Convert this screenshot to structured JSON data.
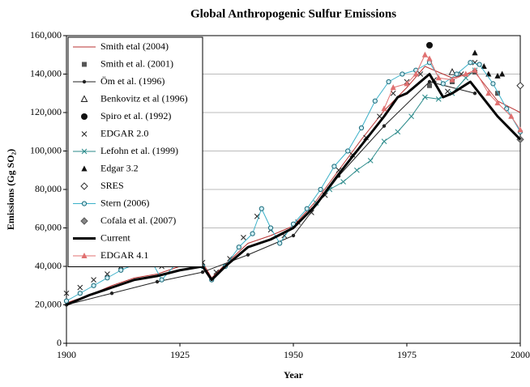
{
  "chart_data": {
    "type": "line",
    "title": "Global Anthropogenic Sulfur Emissions",
    "x_label": "Year",
    "y_label": "Emissions (Gg SO₂)",
    "xlim": [
      1900,
      2000
    ],
    "xticks": [
      1900,
      1925,
      1950,
      1975,
      2000
    ],
    "ylim": [
      0,
      160000
    ],
    "yticks": [
      0,
      {
        "value": 20000,
        "label": "20,000"
      },
      {
        "value": 40000,
        "label": "40,000"
      },
      {
        "value": 60000,
        "label": "60,000"
      },
      {
        "value": 80000,
        "label": "80,000"
      },
      {
        "value": 100000,
        "label": "100,000"
      },
      {
        "value": 120000,
        "label": "120,000"
      },
      {
        "value": 140000,
        "label": "140,000"
      },
      {
        "value": 160000,
        "label": "160,000"
      }
    ],
    "grid": true,
    "legend": "top-left",
    "series": [
      {
        "name": "Smith etal (2004)",
        "color": "#b83232",
        "marker": "none",
        "line": 1,
        "x": [
          1900,
          1905,
          1910,
          1915,
          1920,
          1925,
          1930,
          1932,
          1935,
          1940,
          1945,
          1950,
          1955,
          1960,
          1965,
          1970,
          1975,
          1979,
          1985,
          1990,
          1995,
          2000
        ],
        "values": [
          21000,
          25000,
          30000,
          34000,
          36000,
          40000,
          42000,
          34000,
          41000,
          52000,
          56000,
          61000,
          74000,
          90000,
          106000,
          121000,
          133000,
          144000,
          138000,
          141000,
          126000,
          120000
        ]
      },
      {
        "name": "Smith et al. (2001)",
        "color": "#555555",
        "marker": "square",
        "line": 0,
        "x": [
          1980,
          1985,
          1990,
          1995
        ],
        "values": [
          134000,
          136000,
          141000,
          130000
        ]
      },
      {
        "name": "Öm et al. (1996)",
        "color": "#222222",
        "marker": "dot",
        "line": 1,
        "x": [
          1900,
          1910,
          1920,
          1930,
          1940,
          1950,
          1960,
          1970,
          1980,
          1990
        ],
        "values": [
          20000,
          26000,
          32000,
          37000,
          46000,
          56000,
          87000,
          113000,
          136000,
          130000
        ]
      },
      {
        "name": "Benkovitz et al (1996)",
        "color": "#222222",
        "marker": "triangle-open",
        "line": 0,
        "x": [
          1985
        ],
        "values": [
          141000
        ]
      },
      {
        "name": "Spiro et al. (1992)",
        "color": "#111111",
        "marker": "circle",
        "line": 0,
        "x": [
          1980
        ],
        "values": [
          155000
        ]
      },
      {
        "name": "EDGAR 2.0",
        "color": "#222222",
        "marker": "x",
        "line": 0,
        "x": [
          1900,
          1903,
          1906,
          1909,
          1912,
          1915,
          1918,
          1921,
          1924,
          1927,
          1930,
          1933,
          1936,
          1939,
          1942,
          1945,
          1948,
          1951,
          1954,
          1957,
          1960,
          1963,
          1966,
          1969,
          1972,
          1975,
          1978,
          1981,
          1984,
          1987,
          1990
        ],
        "values": [
          26000,
          29000,
          33000,
          36000,
          40000,
          44000,
          47000,
          40000,
          43000,
          46000,
          42000,
          37000,
          44000,
          55000,
          66000,
          59000,
          56000,
          63000,
          68000,
          77000,
          90000,
          98000,
          107000,
          118000,
          130000,
          136000,
          140000,
          137000,
          131000,
          140000,
          146000
        ]
      },
      {
        "name": "Lefohn et al. (1999)",
        "color": "#2a8a8a",
        "marker": "x",
        "line": 1,
        "x": [
          1955,
          1958,
          1961,
          1964,
          1967,
          1970,
          1973,
          1976,
          1979,
          1982,
          1985,
          1988,
          1990
        ],
        "values": [
          73000,
          80000,
          84000,
          90000,
          95000,
          105000,
          110000,
          118000,
          128000,
          127000,
          130000,
          138000,
          142000
        ]
      },
      {
        "name": "Edgar 3.2",
        "color": "#111111",
        "marker": "triangle",
        "line": 0,
        "x": [
          1990,
          1992,
          1993,
          1995,
          1996
        ],
        "values": [
          151000,
          144000,
          140000,
          139000,
          140000
        ]
      },
      {
        "name": "SRES",
        "color": "#333333",
        "marker": "diamond-open",
        "line": 0,
        "x": [
          2000
        ],
        "values": [
          134000
        ]
      },
      {
        "name": "Stern (2006)",
        "color": "#3ab0c8",
        "marker": "circle-open",
        "line": 1,
        "x": [
          1900,
          1903,
          1906,
          1909,
          1912,
          1915,
          1918,
          1921,
          1924,
          1927,
          1930,
          1932,
          1935,
          1938,
          1941,
          1943,
          1945,
          1947,
          1950,
          1953,
          1956,
          1959,
          1962,
          1965,
          1968,
          1971,
          1974,
          1977,
          1980,
          1983,
          1986,
          1989,
          1991,
          1994,
          1997,
          2000
        ],
        "values": [
          22000,
          26000,
          30000,
          34000,
          38000,
          41000,
          46000,
          33000,
          41000,
          44000,
          40000,
          33000,
          40000,
          50000,
          57000,
          70000,
          60000,
          52000,
          62000,
          70000,
          80000,
          92000,
          100000,
          112000,
          126000,
          136000,
          140000,
          142000,
          146000,
          135000,
          140000,
          146000,
          145000,
          135000,
          122000,
          110000
        ]
      },
      {
        "name": "Cofala et al. (2007)",
        "color": "#888888",
        "marker": "diamond",
        "line": 0,
        "x": [
          2000
        ],
        "values": [
          106000
        ]
      },
      {
        "name": "Current",
        "color": "#000000",
        "marker": "none",
        "line": 3,
        "x": [
          1900,
          1905,
          1910,
          1915,
          1920,
          1925,
          1930,
          1932,
          1935,
          1940,
          1945,
          1950,
          1955,
          1960,
          1965,
          1970,
          1973,
          1975,
          1980,
          1983,
          1985,
          1989,
          1990,
          1995,
          2000
        ],
        "values": [
          20000,
          25000,
          29000,
          33000,
          35000,
          38000,
          40000,
          33000,
          40000,
          50000,
          54000,
          60000,
          72000,
          88000,
          103000,
          118000,
          128000,
          130000,
          140000,
          128000,
          130000,
          136000,
          133000,
          118000,
          106000
        ]
      },
      {
        "name": "EDGAR 4.1",
        "color": "#e07070",
        "marker": "triangle",
        "line": 1,
        "x": [
          1970,
          1972,
          1975,
          1977,
          1979,
          1980,
          1982,
          1985,
          1988,
          1990,
          1993,
          1995,
          1998,
          2000
        ],
        "values": [
          122000,
          133000,
          135000,
          140000,
          150000,
          148000,
          138000,
          137000,
          140000,
          142000,
          130000,
          125000,
          118000,
          111000
        ]
      }
    ]
  }
}
